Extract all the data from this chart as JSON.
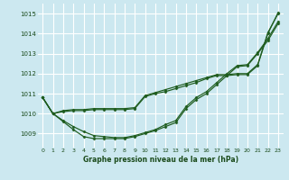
{
  "title": "Graphe pression niveau de la mer (hPa)",
  "bg_color": "#cce8f0",
  "grid_color": "#ffffff",
  "line_color": "#1e5c1e",
  "xlabel_color": "#1a4a1a",
  "xlim": [
    -0.5,
    23.5
  ],
  "ylim": [
    1008.3,
    1015.5
  ],
  "yticks": [
    1009,
    1010,
    1011,
    1012,
    1013,
    1014,
    1015
  ],
  "xticks": [
    0,
    1,
    2,
    3,
    4,
    5,
    6,
    7,
    8,
    9,
    10,
    11,
    12,
    13,
    14,
    15,
    16,
    17,
    18,
    19,
    20,
    21,
    22,
    23
  ],
  "series": [
    [
      1010.8,
      1010.0,
      1009.6,
      1009.2,
      1008.85,
      1008.75,
      1008.75,
      1008.75,
      1008.75,
      1008.85,
      1009.0,
      1009.15,
      1009.35,
      1009.55,
      1010.25,
      1010.7,
      1011.0,
      1011.45,
      1011.9,
      1012.35,
      1012.4,
      1013.0,
      1013.65,
      1014.5
    ],
    [
      1010.8,
      1010.0,
      1009.65,
      1009.35,
      1009.1,
      1008.9,
      1008.85,
      1008.8,
      1008.8,
      1008.9,
      1009.05,
      1009.2,
      1009.45,
      1009.65,
      1010.35,
      1010.8,
      1011.1,
      1011.55,
      1012.0,
      1012.4,
      1012.45,
      1013.05,
      1013.75,
      1014.6
    ],
    [
      1010.8,
      1010.0,
      1010.15,
      1010.2,
      1010.2,
      1010.25,
      1010.25,
      1010.25,
      1010.25,
      1010.3,
      1010.9,
      1011.05,
      1011.2,
      1011.35,
      1011.5,
      1011.65,
      1011.8,
      1011.95,
      1011.95,
      1012.0,
      1012.0,
      1012.45,
      1014.05,
      1015.0
    ],
    [
      1010.8,
      1010.0,
      1010.1,
      1010.15,
      1010.15,
      1010.2,
      1010.2,
      1010.2,
      1010.2,
      1010.25,
      1010.85,
      1011.0,
      1011.1,
      1011.25,
      1011.4,
      1011.55,
      1011.75,
      1011.9,
      1011.9,
      1011.95,
      1011.95,
      1012.4,
      1014.0,
      1015.05
    ]
  ]
}
